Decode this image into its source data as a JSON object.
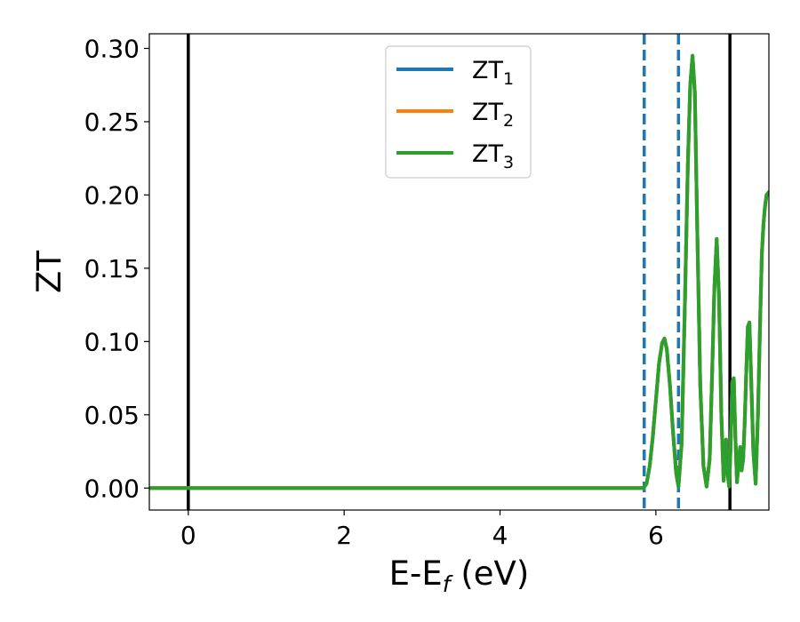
{
  "chart_data": {
    "type": "line",
    "title": "",
    "xlabel": {
      "main": "E-E",
      "sub": "f",
      "suffix": " (eV)"
    },
    "ylabel": "ZT",
    "xlim": [
      -0.5,
      7.45
    ],
    "ylim": [
      -0.015,
      0.31
    ],
    "xticks": [
      0,
      2,
      4,
      6
    ],
    "xtick_labels": [
      "0",
      "2",
      "4",
      "6"
    ],
    "yticks": [
      0.0,
      0.05,
      0.1,
      0.15,
      0.2,
      0.25,
      0.3
    ],
    "ytick_labels": [
      "0.00",
      "0.05",
      "0.10",
      "0.15",
      "0.20",
      "0.25",
      "0.30"
    ],
    "grid": false,
    "legend_position": "top-center",
    "vlines": [
      {
        "x": 0.0,
        "style": "solid",
        "color": "#000000"
      },
      {
        "x": 6.95,
        "style": "solid",
        "color": "#000000"
      },
      {
        "x": 5.85,
        "style": "dashed",
        "color": "#1f77b4"
      },
      {
        "x": 6.29,
        "style": "dashed",
        "color": "#1f77b4"
      }
    ],
    "x": [
      -0.5,
      5.84,
      5.88,
      5.92,
      5.96,
      6.0,
      6.04,
      6.08,
      6.11,
      6.14,
      6.18,
      6.22,
      6.26,
      6.29,
      6.33,
      6.37,
      6.41,
      6.44,
      6.47,
      6.5,
      6.53,
      6.57,
      6.61,
      6.65,
      6.69,
      6.72,
      6.75,
      6.78,
      6.81,
      6.84,
      6.87,
      6.9,
      6.92,
      6.94,
      6.96,
      6.98,
      7.0,
      7.02,
      7.04,
      7.06,
      7.08,
      7.1,
      7.12,
      7.14,
      7.16,
      7.18,
      7.2,
      7.22,
      7.25,
      7.28,
      7.31,
      7.34,
      7.36,
      7.38,
      7.4,
      7.42,
      7.45
    ],
    "series": [
      {
        "name_main": "ZT",
        "name_sub": "1",
        "color": "#1f77b4",
        "y": [
          0.0,
          0.0,
          0.003,
          0.015,
          0.035,
          0.06,
          0.085,
          0.099,
          0.102,
          0.095,
          0.07,
          0.038,
          0.01,
          0.001,
          0.03,
          0.12,
          0.22,
          0.275,
          0.295,
          0.27,
          0.18,
          0.07,
          0.015,
          0.001,
          0.02,
          0.075,
          0.135,
          0.17,
          0.13,
          0.05,
          0.005,
          0.033,
          0.01,
          0.001,
          0.03,
          0.072,
          0.075,
          0.035,
          0.004,
          0.016,
          0.028,
          0.012,
          0.02,
          0.045,
          0.08,
          0.11,
          0.113,
          0.08,
          0.025,
          0.003,
          0.05,
          0.12,
          0.16,
          0.18,
          0.192,
          0.2,
          0.202
        ]
      },
      {
        "name_main": "ZT",
        "name_sub": "2",
        "color": "#ff7f0e",
        "y": [
          0.0,
          0.0,
          0.003,
          0.015,
          0.035,
          0.06,
          0.085,
          0.099,
          0.102,
          0.095,
          0.07,
          0.038,
          0.01,
          0.001,
          0.03,
          0.12,
          0.22,
          0.275,
          0.295,
          0.27,
          0.18,
          0.07,
          0.015,
          0.001,
          0.02,
          0.075,
          0.135,
          0.17,
          0.13,
          0.05,
          0.005,
          0.033,
          0.01,
          0.001,
          0.03,
          0.072,
          0.075,
          0.035,
          0.004,
          0.016,
          0.028,
          0.012,
          0.02,
          0.045,
          0.08,
          0.11,
          0.113,
          0.08,
          0.025,
          0.003,
          0.05,
          0.12,
          0.16,
          0.18,
          0.192,
          0.2,
          0.202
        ]
      },
      {
        "name_main": "ZT",
        "name_sub": "3",
        "color": "#2ca02c",
        "y": [
          0.0,
          0.0,
          0.003,
          0.015,
          0.035,
          0.06,
          0.085,
          0.099,
          0.102,
          0.095,
          0.07,
          0.038,
          0.01,
          0.001,
          0.03,
          0.12,
          0.22,
          0.275,
          0.295,
          0.27,
          0.18,
          0.07,
          0.015,
          0.001,
          0.02,
          0.075,
          0.135,
          0.17,
          0.13,
          0.05,
          0.005,
          0.033,
          0.01,
          0.001,
          0.03,
          0.072,
          0.075,
          0.035,
          0.004,
          0.016,
          0.028,
          0.012,
          0.02,
          0.045,
          0.08,
          0.11,
          0.113,
          0.08,
          0.025,
          0.003,
          0.05,
          0.12,
          0.16,
          0.18,
          0.192,
          0.2,
          0.202
        ]
      }
    ]
  }
}
